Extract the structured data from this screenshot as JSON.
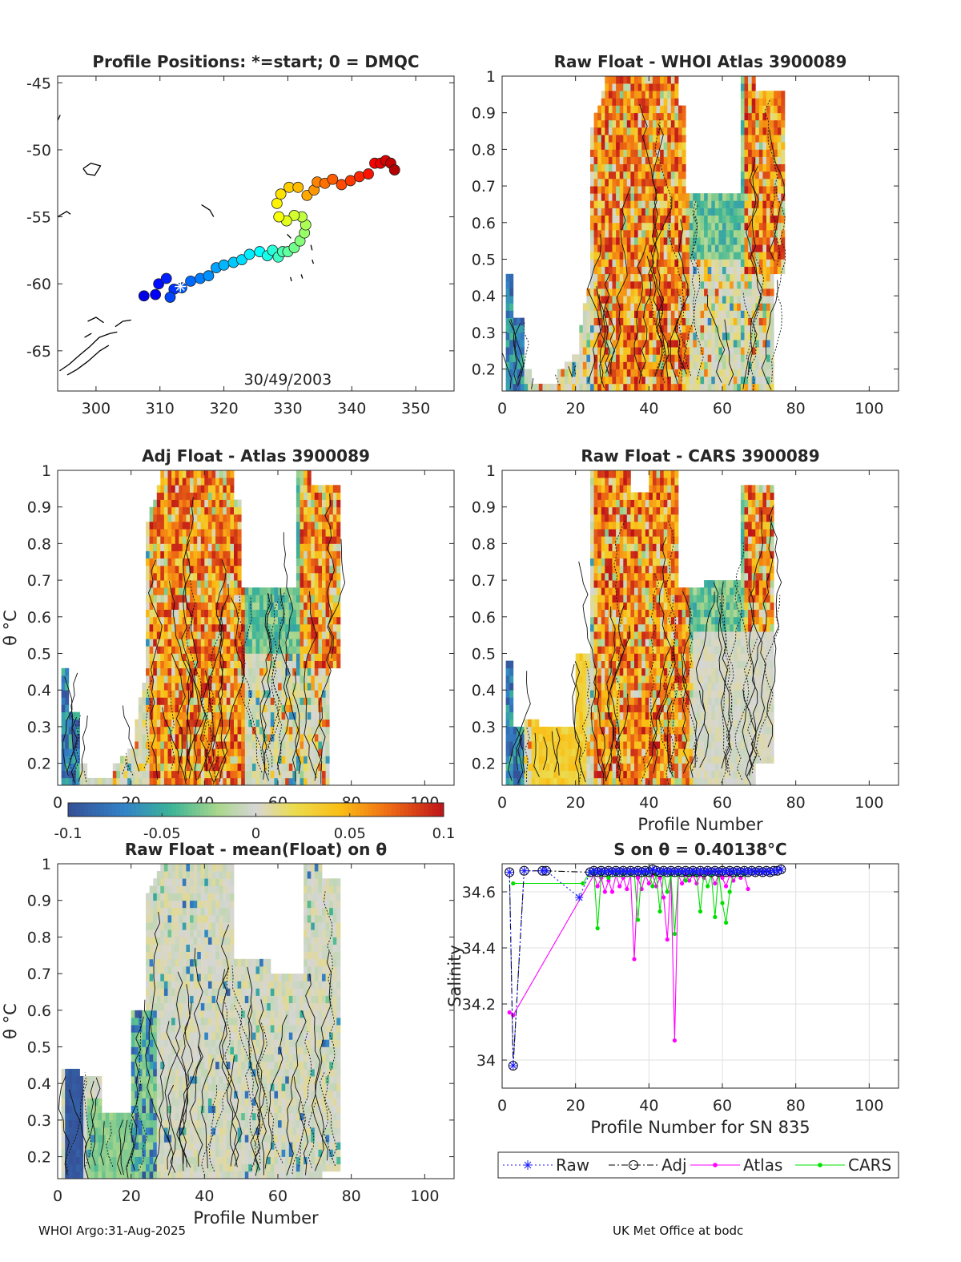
{
  "footer": {
    "left": "WHOI Argo:31-Aug-2025",
    "right": "UK Met Office at bodc"
  },
  "colors": {
    "axis": "#262626",
    "grid": "#e0e0e0",
    "raw": "#1a1aff",
    "adj": "#000000",
    "atlas": "#ff00ff",
    "cars": "#00e000",
    "neutral": "#d6d6d6"
  },
  "chart_data": [
    {
      "id": "positions",
      "type": "scatter",
      "title": "Profile Positions: *=start; 0 = DMQC",
      "annotation": "30/49/2003",
      "xlim": [
        294,
        356
      ],
      "ylim": [
        -68,
        -44.5
      ],
      "xticks": [
        300,
        310,
        320,
        330,
        340,
        350
      ],
      "yticks": [
        -45,
        -50,
        -55,
        -60,
        -65
      ],
      "track": [
        [
          307.5,
          -60.9
        ],
        [
          309.3,
          -60.8
        ],
        [
          309.8,
          -60.0
        ],
        [
          311.0,
          -59.6
        ],
        [
          312.2,
          -60.4
        ],
        [
          311.6,
          -61.0
        ],
        [
          313.4,
          -60.3
        ],
        [
          314.8,
          -59.8
        ],
        [
          316.3,
          -59.6
        ],
        [
          317.6,
          -59.4
        ],
        [
          318.8,
          -58.8
        ],
        [
          320.0,
          -58.6
        ],
        [
          321.5,
          -58.4
        ],
        [
          322.8,
          -58.2
        ],
        [
          324.0,
          -57.8
        ],
        [
          325.6,
          -57.6
        ],
        [
          326.8,
          -57.9
        ],
        [
          327.6,
          -57.5
        ],
        [
          328.5,
          -58.0
        ],
        [
          329.2,
          -57.6
        ],
        [
          330.0,
          -57.6
        ],
        [
          331.0,
          -57.3
        ],
        [
          331.9,
          -56.8
        ],
        [
          332.6,
          -56.2
        ],
        [
          332.8,
          -55.6
        ],
        [
          332.2,
          -55.0
        ],
        [
          331.0,
          -54.9
        ],
        [
          329.8,
          -55.3
        ],
        [
          328.6,
          -55.0
        ],
        [
          328.3,
          -54.0
        ],
        [
          328.9,
          -53.3
        ],
        [
          330.2,
          -52.8
        ],
        [
          331.6,
          -52.8
        ],
        [
          333.0,
          -53.4
        ],
        [
          334.1,
          -53.0
        ],
        [
          334.6,
          -52.4
        ],
        [
          335.8,
          -52.5
        ],
        [
          337.0,
          -52.2
        ],
        [
          338.4,
          -52.6
        ],
        [
          339.8,
          -52.3
        ],
        [
          341.2,
          -52.0
        ],
        [
          342.6,
          -51.8
        ],
        [
          343.6,
          -51.0
        ],
        [
          344.5,
          -51.0
        ],
        [
          345.3,
          -50.8
        ],
        [
          346.1,
          -51.0
        ],
        [
          346.7,
          -51.5
        ]
      ],
      "start": [
        313.2,
        -60.2
      ],
      "coast": [
        [
          [
            294.3,
            -66.5
          ],
          [
            295.8,
            -66.0
          ],
          [
            297.5,
            -65.3
          ],
          [
            299.0,
            -64.7
          ],
          [
            300.5,
            -64.0
          ],
          [
            302.2,
            -63.7
          ],
          [
            303.3,
            -63.6
          ]
        ],
        [
          [
            295.5,
            -66.8
          ],
          [
            297.0,
            -66.4
          ],
          [
            298.7,
            -65.8
          ],
          [
            300.6,
            -65.0
          ],
          [
            302.0,
            -64.6
          ]
        ],
        [
          [
            303.0,
            -63.2
          ],
          [
            304.2,
            -62.8
          ],
          [
            305.5,
            -62.7
          ]
        ],
        [
          [
            298.7,
            -62.8
          ],
          [
            300.0,
            -62.5
          ],
          [
            301.2,
            -62.9
          ]
        ],
        [
          [
            298.2,
            -64.0
          ],
          [
            299.3,
            -63.7
          ]
        ],
        [
          [
            298.0,
            -51.4
          ],
          [
            299.2,
            -51.0
          ],
          [
            300.7,
            -51.2
          ],
          [
            299.8,
            -51.9
          ],
          [
            298.6,
            -51.8
          ],
          [
            298.0,
            -51.4
          ]
        ],
        [
          [
            294.0,
            -55.0
          ],
          [
            295.4,
            -54.6
          ],
          [
            296.0,
            -54.8
          ]
        ],
        [
          [
            294.0,
            -47.8
          ],
          [
            294.4,
            -47.4
          ]
        ],
        [
          [
            316.5,
            -54.1
          ],
          [
            317.8,
            -54.5
          ],
          [
            318.4,
            -55.0
          ]
        ],
        [
          [
            329.9,
            -56.3
          ],
          [
            330.5,
            -56.6
          ]
        ],
        [
          [
            333.8,
            -58.2
          ],
          [
            334.0,
            -58.5
          ]
        ],
        [
          [
            332.1,
            -59.3
          ],
          [
            332.3,
            -59.6
          ]
        ],
        [
          [
            330.4,
            -59.5
          ],
          [
            330.6,
            -59.8
          ]
        ],
        [
          [
            333.6,
            -57.1
          ],
          [
            333.8,
            -57.5
          ]
        ]
      ]
    },
    {
      "id": "raw-atlas",
      "type": "heatmap",
      "title": "Raw Float - WHOI Atlas  3900089",
      "xlim": [
        0,
        108
      ],
      "ylim": [
        0.14,
        1.0
      ],
      "xticks": [
        0,
        20,
        40,
        60,
        80,
        100
      ],
      "yticks": [
        0.2,
        0.3,
        0.4,
        0.5,
        0.6,
        0.7,
        0.8,
        0.9,
        1
      ],
      "ylabel": "",
      "xlabel": "",
      "seed": 11,
      "coverage": "atlas"
    },
    {
      "id": "adj-atlas",
      "type": "heatmap",
      "title": "Adj Float - Atlas  3900089",
      "xlim": [
        0,
        108
      ],
      "ylim": [
        0.14,
        1.0
      ],
      "xticks": [
        0,
        20,
        40,
        60,
        80,
        100
      ],
      "yticks": [
        0.2,
        0.3,
        0.4,
        0.5,
        0.6,
        0.7,
        0.8,
        0.9,
        1
      ],
      "ylabel": "θ °C",
      "xlabel": "",
      "seed": 29,
      "coverage": "atlas"
    },
    {
      "id": "raw-cars",
      "type": "heatmap",
      "title": "Raw Float - CARS  3900089",
      "xlim": [
        0,
        108
      ],
      "ylim": [
        0.14,
        1.0
      ],
      "xticks": [
        0,
        20,
        40,
        60,
        80,
        100
      ],
      "yticks": [
        0.2,
        0.3,
        0.4,
        0.5,
        0.6,
        0.7,
        0.8,
        0.9,
        1
      ],
      "ylabel": "",
      "xlabel": "Profile Number",
      "seed": 47,
      "coverage": "cars"
    },
    {
      "id": "raw-mean",
      "type": "heatmap",
      "title": "Raw Float - mean(Float) on θ",
      "xlim": [
        0,
        108
      ],
      "ylim": [
        0.14,
        1.0
      ],
      "xticks": [
        0,
        20,
        40,
        60,
        80,
        100
      ],
      "yticks": [
        0.2,
        0.3,
        0.4,
        0.5,
        0.6,
        0.7,
        0.8,
        0.9,
        1
      ],
      "ylabel": "θ °C",
      "xlabel": "Profile Number",
      "seed": 83,
      "coverage": "mean"
    },
    {
      "id": "colorbar",
      "type": "heatmap",
      "range": [
        -0.1,
        0.1
      ],
      "ticks": [
        "-0.1",
        "-0.05",
        "0",
        "0.05",
        "0.1"
      ]
    },
    {
      "id": "salinity",
      "type": "line",
      "title": "S on θ = 0.40138°C",
      "xlabel": "Profile Number for SN 835",
      "ylabel": "Salinity",
      "xlim": [
        0,
        108
      ],
      "ylim": [
        33.9,
        34.7
      ],
      "xticks": [
        0,
        20,
        40,
        60,
        80,
        100
      ],
      "yticks": [
        34,
        34.2,
        34.4,
        34.6
      ],
      "grid": true,
      "legend_position": "bottom",
      "series": [
        {
          "name": "Raw",
          "marker": "asterisk",
          "style": "dotted",
          "x": [
            2,
            3,
            6,
            11,
            12,
            21,
            24,
            25,
            26,
            27,
            28,
            29,
            30,
            31,
            32,
            33,
            34,
            35,
            36,
            37,
            38,
            39,
            40,
            41,
            42,
            43,
            44,
            45,
            46,
            47,
            48,
            49,
            50,
            51,
            52,
            53,
            54,
            55,
            56,
            57,
            58,
            59,
            60,
            61,
            62,
            63,
            64,
            65,
            66,
            67,
            68,
            69,
            70,
            71,
            72,
            73,
            74,
            75,
            76
          ],
          "y": [
            34.67,
            33.98,
            34.675,
            34.675,
            34.675,
            34.58,
            34.67,
            34.675,
            34.67,
            34.675,
            34.67,
            34.675,
            34.67,
            34.675,
            34.67,
            34.675,
            34.67,
            34.675,
            34.67,
            34.675,
            34.67,
            34.675,
            34.67,
            34.68,
            34.675,
            34.67,
            34.675,
            34.67,
            34.675,
            34.67,
            34.675,
            34.67,
            34.675,
            34.67,
            34.675,
            34.67,
            34.675,
            34.67,
            34.675,
            34.67,
            34.675,
            34.67,
            34.675,
            34.67,
            34.675,
            34.67,
            34.675,
            34.67,
            34.675,
            34.67,
            34.675,
            34.67,
            34.675,
            34.67,
            34.675,
            34.67,
            34.675,
            34.675,
            34.68
          ]
        },
        {
          "name": "Adj",
          "marker": "circle",
          "style": "dashdot",
          "x": [
            2,
            3,
            6,
            11,
            12,
            24,
            25,
            26,
            27,
            28,
            29,
            30,
            31,
            32,
            33,
            34,
            35,
            36,
            37,
            38,
            39,
            40,
            41,
            42,
            43,
            44,
            45,
            46,
            47,
            48,
            49,
            50,
            51,
            52,
            53,
            54,
            55,
            56,
            57,
            58,
            59,
            60,
            61,
            62,
            63,
            64,
            65,
            66,
            67,
            68,
            69,
            70,
            71,
            72,
            73,
            74,
            75,
            76
          ],
          "y": [
            34.67,
            33.98,
            34.675,
            34.675,
            34.675,
            34.67,
            34.675,
            34.67,
            34.675,
            34.67,
            34.675,
            34.67,
            34.675,
            34.67,
            34.675,
            34.67,
            34.675,
            34.67,
            34.675,
            34.67,
            34.675,
            34.67,
            34.68,
            34.675,
            34.67,
            34.675,
            34.67,
            34.675,
            34.67,
            34.675,
            34.67,
            34.675,
            34.67,
            34.675,
            34.67,
            34.675,
            34.67,
            34.675,
            34.67,
            34.675,
            34.67,
            34.675,
            34.67,
            34.675,
            34.67,
            34.675,
            34.67,
            34.675,
            34.67,
            34.675,
            34.67,
            34.675,
            34.67,
            34.675,
            34.67,
            34.675,
            34.675,
            34.68
          ]
        },
        {
          "name": "Atlas",
          "marker": "dot",
          "style": "solid",
          "x": [
            2,
            3,
            25,
            26,
            27,
            28,
            29,
            30,
            31,
            32,
            33,
            34,
            35,
            36,
            37,
            38,
            39,
            40,
            41,
            42,
            43,
            44,
            45,
            46,
            47,
            48,
            49,
            50,
            51,
            52,
            53,
            54,
            55,
            56,
            57,
            58,
            59,
            60,
            61,
            62,
            63,
            64,
            65,
            66,
            67
          ],
          "y": [
            34.17,
            34.16,
            34.66,
            34.62,
            34.65,
            34.6,
            34.64,
            34.6,
            34.66,
            34.62,
            34.65,
            34.61,
            34.66,
            34.36,
            34.65,
            34.61,
            34.66,
            34.63,
            34.66,
            34.62,
            34.65,
            34.58,
            34.43,
            34.66,
            34.07,
            34.66,
            34.63,
            34.66,
            34.64,
            34.66,
            34.63,
            34.66,
            34.65,
            34.67,
            34.66,
            34.63,
            34.66,
            34.65,
            34.62,
            34.66,
            34.64,
            34.66,
            34.65,
            34.66,
            34.61
          ]
        },
        {
          "name": "CARS",
          "marker": "dot",
          "style": "solid",
          "x": [
            3,
            22,
            24,
            25,
            26,
            27,
            28,
            29,
            30,
            31,
            32,
            33,
            34,
            35,
            36,
            37,
            38,
            39,
            40,
            41,
            42,
            43,
            44,
            45,
            46,
            47,
            48,
            49,
            50,
            51,
            52,
            53,
            54,
            55,
            56,
            57,
            58,
            59,
            60,
            61,
            62,
            63,
            64,
            65,
            66
          ],
          "y": [
            34.63,
            34.63,
            34.67,
            34.67,
            34.47,
            34.66,
            34.67,
            34.65,
            34.67,
            34.66,
            34.67,
            34.66,
            34.67,
            34.66,
            34.67,
            34.5,
            34.67,
            34.66,
            34.67,
            34.62,
            34.66,
            34.53,
            34.67,
            34.6,
            34.66,
            34.45,
            34.66,
            34.67,
            34.64,
            34.66,
            34.67,
            34.66,
            34.53,
            34.67,
            34.62,
            34.66,
            34.51,
            34.67,
            34.56,
            34.49,
            34.6,
            34.67,
            34.66,
            34.67,
            34.66
          ]
        }
      ]
    }
  ]
}
